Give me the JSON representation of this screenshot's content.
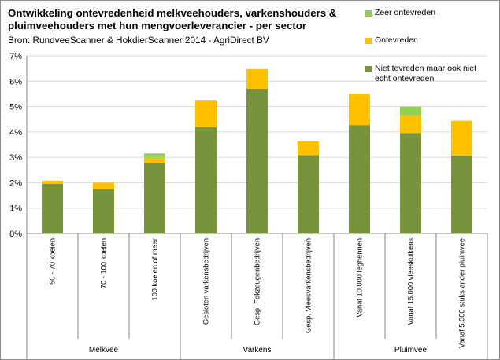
{
  "chart_data": {
    "type": "bar",
    "stacked": true,
    "title": "Ontwikkeling ontevredenheid melkveehouders, varkenshouders &\npluimveehouders met hun mengvoerleverancier - per sector",
    "subtitle": "Bron: RundveeScanner & HokdierScanner 2014 - AgriDirect BV",
    "categories": [
      "50 - 70 koeien",
      "70 - 100 koeien",
      "100 koeien of meer",
      "Gesloten varkensbedrijven",
      "Gesp. Fokzeugenbedrijven",
      "Gesp. Vleesvarkensbedrijven",
      "Vanaf 10.000 leghennen",
      "Vanaf 15.000 vleeskuikens",
      "Vanaf 5.000 stuks ander pluimvee"
    ],
    "groups": [
      {
        "label": "Melkvee",
        "from": 0,
        "to": 2
      },
      {
        "label": "Varkens",
        "from": 3,
        "to": 5
      },
      {
        "label": "Pluimvee",
        "from": 6,
        "to": 8
      }
    ],
    "series": [
      {
        "name": "Niet tevreden maar ook niet echt ontevreden",
        "color": "#77933c",
        "values": [
          1.95,
          1.75,
          2.78,
          4.18,
          5.7,
          3.08,
          4.27,
          3.95,
          3.07
        ]
      },
      {
        "name": "Ontevreden",
        "color": "#ffc000",
        "values": [
          0.13,
          0.25,
          0.2,
          1.08,
          0.78,
          0.55,
          1.22,
          0.7,
          1.37
        ]
      },
      {
        "name": "Zeer ontevreden",
        "color": "#92d050",
        "values": [
          0,
          0,
          0.17,
          0,
          0,
          0,
          0,
          0.35,
          0
        ]
      }
    ],
    "ylim": [
      0,
      7
    ],
    "yticks": [
      "0%",
      "1%",
      "2%",
      "3%",
      "4%",
      "5%",
      "6%",
      "7%"
    ],
    "grid": true,
    "legend": "top-right"
  }
}
